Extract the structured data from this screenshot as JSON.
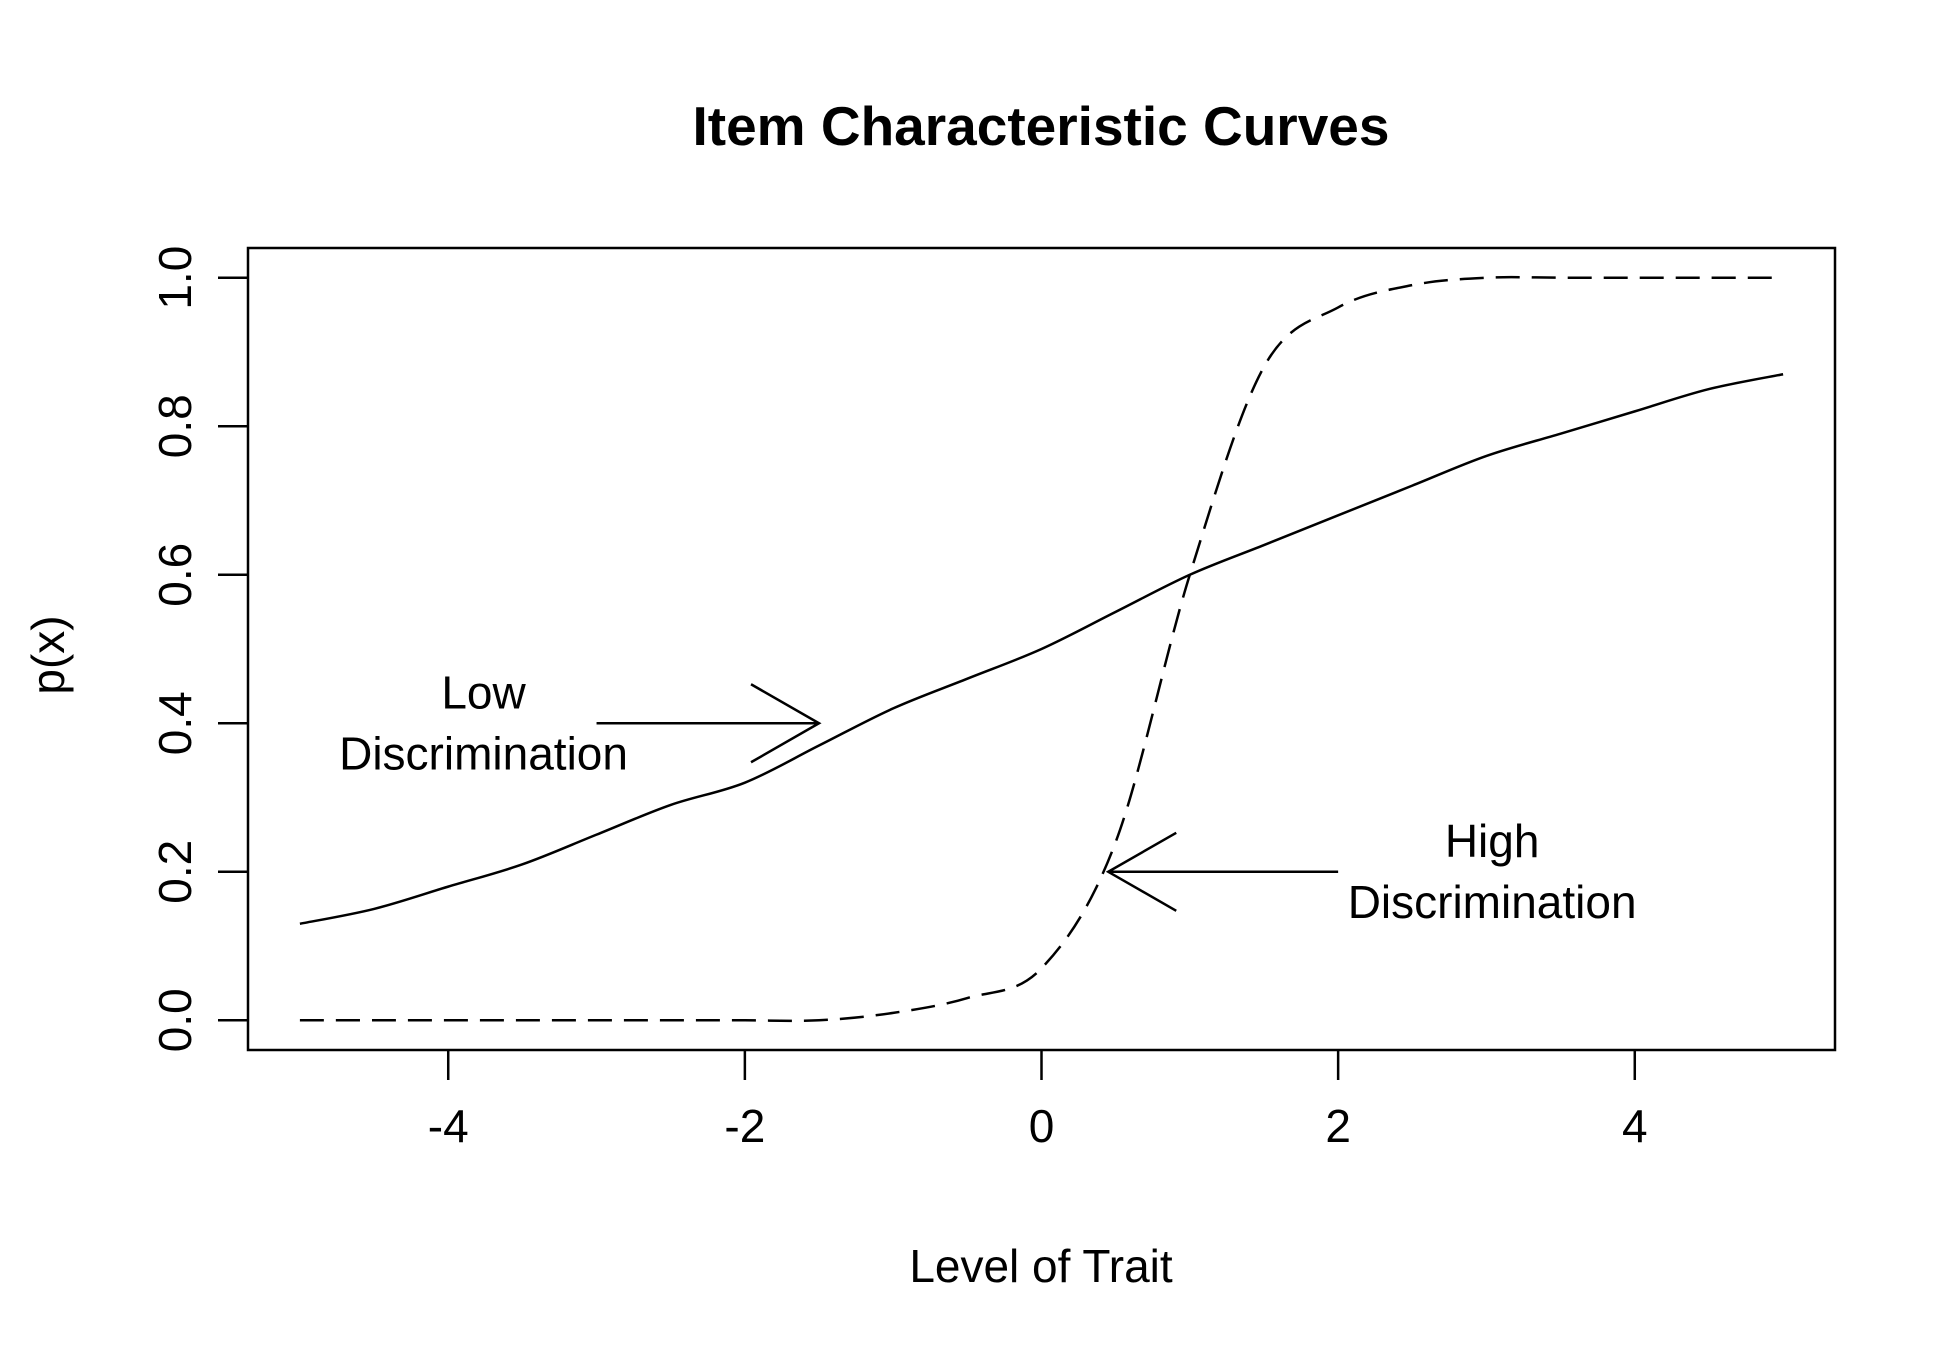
{
  "chart_data": {
    "type": "line",
    "title": "Item Characteristic Curves",
    "xlabel": "Level of Trait",
    "ylabel": "p(x)",
    "xlim": [
      -5.35,
      5.35
    ],
    "ylim": [
      -0.04,
      1.04
    ],
    "xticks": [
      -4,
      -2,
      0,
      2,
      4
    ],
    "xtick_labels": [
      "-4",
      "-2",
      "0",
      "2",
      "4"
    ],
    "yticks": [
      0.0,
      0.2,
      0.4,
      0.6,
      0.8,
      1.0
    ],
    "ytick_labels": [
      "0.0",
      "0.2",
      "0.4",
      "0.6",
      "0.8",
      "1.0"
    ],
    "grid": false,
    "legend": "none",
    "x": [
      -5,
      -4.5,
      -4,
      -3.5,
      -3,
      -2.5,
      -2,
      -1.5,
      -1,
      -0.5,
      0,
      0.5,
      1,
      1.5,
      2,
      2.5,
      3,
      3.5,
      4,
      4.5,
      5
    ],
    "series": [
      {
        "style": "solid",
        "color": "#000000",
        "values": [
          0.13,
          0.15,
          0.18,
          0.21,
          0.25,
          0.29,
          0.32,
          0.37,
          0.42,
          0.46,
          0.5,
          0.55,
          0.6,
          0.64,
          0.68,
          0.72,
          0.76,
          0.79,
          0.82,
          0.85,
          0.87
        ]
      },
      {
        "style": "dashed",
        "color": "#000000",
        "values": [
          0.0,
          0.0,
          0.0,
          0.0,
          0.0,
          0.0,
          0.0,
          0.0,
          0.01,
          0.03,
          0.07,
          0.24,
          0.6,
          0.88,
          0.96,
          0.99,
          1.0,
          1.0,
          1.0,
          1.0,
          1.0
        ]
      }
    ],
    "annotations": [
      {
        "lines": [
          "Low",
          "Discrimination"
        ],
        "arrow_tip": [
          -1.5,
          0.4
        ],
        "arrow_tail": [
          -3.0,
          0.4
        ]
      },
      {
        "lines": [
          "High",
          "Discrimination"
        ],
        "arrow_tip": [
          0.45,
          0.2
        ],
        "arrow_tail": [
          2.0,
          0.2
        ]
      }
    ]
  }
}
